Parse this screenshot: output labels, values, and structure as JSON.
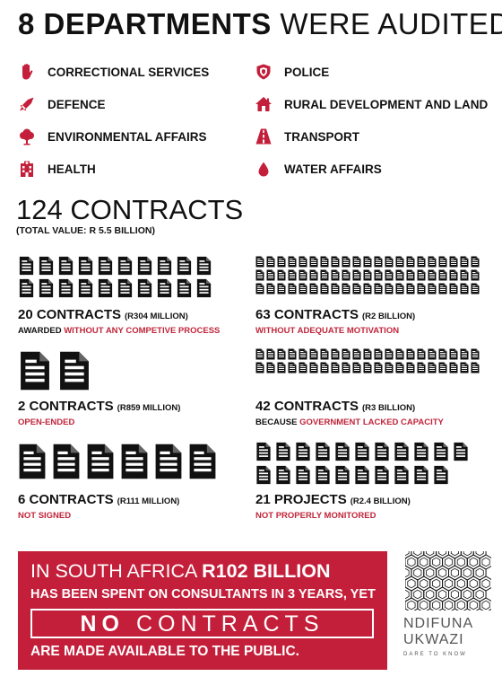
{
  "heading": {
    "bold": "8 DEPARTMENTS",
    "rest": "WERE AUDITED"
  },
  "departments": [
    {
      "label": "CORRECTIONAL SERVICES",
      "icon": "raised-hand-icon"
    },
    {
      "label": "POLICE",
      "icon": "police-badge-icon"
    },
    {
      "label": "DEFENCE",
      "icon": "missile-icon"
    },
    {
      "label": "RURAL DEVELOPMENT AND LAND",
      "icon": "house-icon"
    },
    {
      "label": "ENVIRONMENTAL AFFAIRS",
      "icon": "tree-icon"
    },
    {
      "label": "TRANSPORT",
      "icon": "road-icon"
    },
    {
      "label": "HEALTH",
      "icon": "hospital-icon"
    },
    {
      "label": "WATER AFFAIRS",
      "icon": "water-drop-icon"
    }
  ],
  "contracts": {
    "title": "124 CONTRACTS",
    "subtitle": "(TOTAL VALUE: R 5.5 BILLION)"
  },
  "stats": [
    {
      "count": 20,
      "count_label": "20 CONTRACTS",
      "value": "(R304 MILLION)",
      "desc_plain": "AWARDED ",
      "desc_red": "WITHOUT ANY COMPETIVE PROCESS"
    },
    {
      "count": 63,
      "count_label": "63 CONTRACTS",
      "value": "(R2 BILLION)",
      "desc_plain": "",
      "desc_red": "WITHOUT ADEQUATE MOTIVATION"
    },
    {
      "count": 2,
      "count_label": "2 CONTRACTS",
      "value": "(R859 MILLION)",
      "desc_plain": "",
      "desc_red": "OPEN-ENDED"
    },
    {
      "count": 42,
      "count_label": "42 CONTRACTS",
      "value": "(R3 BILLION)",
      "desc_plain": "BECAUSE ",
      "desc_red": "GOVERNMENT LACKED CAPACITY"
    },
    {
      "count": 6,
      "count_label": "6 CONTRACTS",
      "value": "(R111 MILLION)",
      "desc_plain": "",
      "desc_red": "NOT SIGNED"
    },
    {
      "count": 21,
      "count_label": "21 PROJECTS",
      "value": "(R2.4 BILLION)",
      "desc_plain": "",
      "desc_red": "NOT PROPERLY MONITORED"
    }
  ],
  "banner": {
    "line1_plain": "IN SOUTH AFRICA ",
    "line1_bold": "R102 BILLION",
    "line2": "HAS BEEN SPENT ON CONSULTANTS IN 3 YEARS, YET",
    "line3_bold": "NO",
    "line3_rest": " CONTRACTS",
    "line4": "ARE MADE AVAILABLE TO THE PUBLIC."
  },
  "logo": {
    "line1": "NDIFUNA",
    "line2": "UKWAZI",
    "tagline": "DARE TO KNOW"
  },
  "colors": {
    "accent": "#c31f3a",
    "text": "#111111"
  }
}
